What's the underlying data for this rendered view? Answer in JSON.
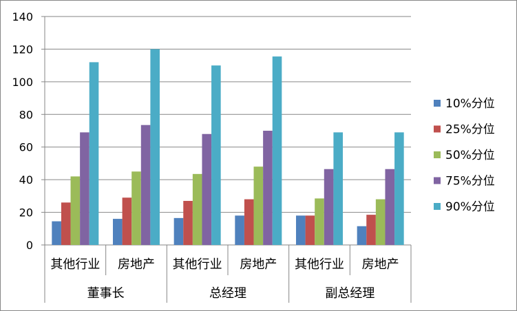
{
  "chart_data": {
    "type": "bar",
    "ylim": [
      0,
      140
    ],
    "yticks": [
      0,
      20,
      40,
      60,
      80,
      100,
      120,
      140
    ],
    "grid": true,
    "legend_position": "right",
    "groups": [
      {
        "label": "董事长",
        "categories": [
          "其他行业",
          "房地产"
        ]
      },
      {
        "label": "总经理",
        "categories": [
          "其他行业",
          "房地产"
        ]
      },
      {
        "label": "副总经理",
        "categories": [
          "其他行业",
          "房地产"
        ]
      }
    ],
    "categories": [
      "其他行业",
      "房地产",
      "其他行业",
      "房地产",
      "其他行业",
      "房地产"
    ],
    "series": [
      {
        "name": "10%分位",
        "color": "#4F81BD",
        "values": [
          14.5,
          16,
          16.5,
          18,
          18,
          11.5
        ]
      },
      {
        "name": "25%分位",
        "color": "#C0504D",
        "values": [
          26,
          29,
          27,
          28,
          18,
          18.5
        ]
      },
      {
        "name": "50%分位",
        "color": "#9BBB59",
        "values": [
          42,
          45,
          43.5,
          48,
          28.5,
          28
        ]
      },
      {
        "name": "75%分位",
        "color": "#8064A2",
        "values": [
          69,
          73.5,
          68,
          70,
          46.5,
          46.5
        ]
      },
      {
        "name": "90%分位",
        "color": "#4BACC6",
        "values": [
          112,
          120,
          110,
          115.5,
          69,
          69
        ]
      }
    ]
  }
}
